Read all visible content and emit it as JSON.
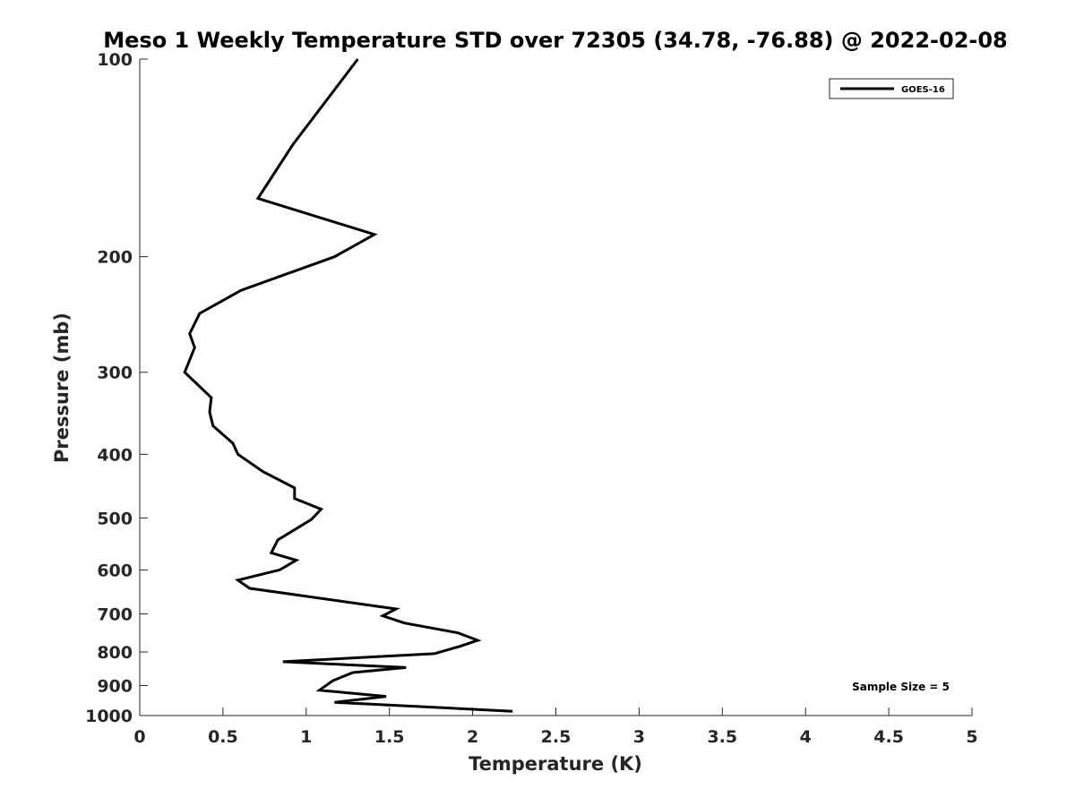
{
  "chart_data": {
    "type": "line",
    "title": "Meso 1 Weekly Temperature STD over 72305 (34.78, -76.88) @ 2022-02-08",
    "xlabel": "Temperature (K)",
    "ylabel": "Pressure (mb)",
    "xlim": [
      0,
      5
    ],
    "ylim": [
      100,
      1000
    ],
    "y_scale": "log",
    "y_reversed": true,
    "x_ticks": [
      "0",
      "0.5",
      "1",
      "1.5",
      "2",
      "2.5",
      "3",
      "3.5",
      "4",
      "4.5",
      "5"
    ],
    "x_tick_values": [
      0,
      0.5,
      1,
      1.5,
      2,
      2.5,
      3,
      3.5,
      4,
      4.5,
      5
    ],
    "y_ticks": [
      "100",
      "200",
      "300",
      "400",
      "500",
      "600",
      "700",
      "800",
      "900",
      "1000"
    ],
    "y_tick_values": [
      100,
      200,
      300,
      400,
      500,
      600,
      700,
      800,
      900,
      1000
    ],
    "grid": false,
    "legend": {
      "placement": "top-right",
      "entries": [
        "GOES-16"
      ]
    },
    "annotation": "Sample Size = 5",
    "series": [
      {
        "name": "GOES-16",
        "color": "#000000",
        "points": [
          [
            1.31,
            100
          ],
          [
            0.92,
            135
          ],
          [
            0.71,
            163
          ],
          [
            1.41,
            185
          ],
          [
            1.17,
            200
          ],
          [
            0.61,
            225
          ],
          [
            0.36,
            244
          ],
          [
            0.3,
            262
          ],
          [
            0.33,
            275
          ],
          [
            0.27,
            300
          ],
          [
            0.43,
            328
          ],
          [
            0.42,
            345
          ],
          [
            0.44,
            362
          ],
          [
            0.56,
            385
          ],
          [
            0.59,
            400
          ],
          [
            0.74,
            425
          ],
          [
            0.93,
            450
          ],
          [
            0.93,
            467
          ],
          [
            1.09,
            485
          ],
          [
            1.03,
            503
          ],
          [
            0.83,
            540
          ],
          [
            0.79,
            565
          ],
          [
            0.94,
            580
          ],
          [
            0.84,
            600
          ],
          [
            0.59,
            622
          ],
          [
            0.66,
            640
          ],
          [
            1.54,
            688
          ],
          [
            1.46,
            705
          ],
          [
            1.59,
            723
          ],
          [
            1.91,
            748
          ],
          [
            2.03,
            768
          ],
          [
            1.92,
            785
          ],
          [
            1.77,
            805
          ],
          [
            0.86,
            828
          ],
          [
            1.6,
            845
          ],
          [
            1.28,
            860
          ],
          [
            1.16,
            885
          ],
          [
            1.08,
            915
          ],
          [
            1.48,
            935
          ],
          [
            1.17,
            955
          ],
          [
            2.24,
            985
          ]
        ]
      }
    ]
  }
}
